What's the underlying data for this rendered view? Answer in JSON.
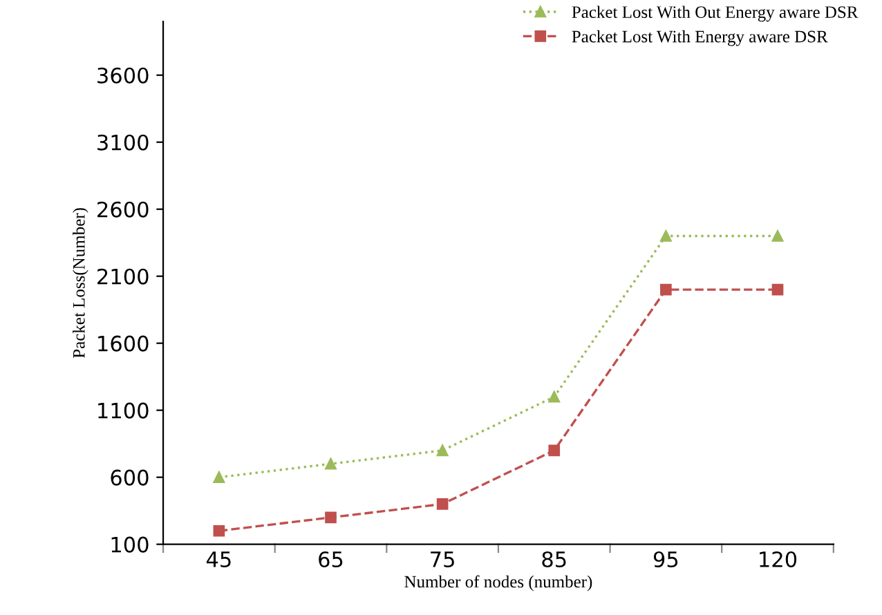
{
  "chart_data": {
    "type": "line",
    "xlabel": "Number of nodes (number)",
    "ylabel": "Packet Loss(Number)",
    "categories": [
      "45",
      "65",
      "75",
      "85",
      "95",
      "120"
    ],
    "series": [
      {
        "name": "Packet Lost With Out Energy aware DSR",
        "color": "#9bbb59",
        "values": [
          600,
          700,
          800,
          1200,
          2400,
          2400
        ],
        "marker": "triangle",
        "line_style": "dotted"
      },
      {
        "name": "Packet Lost With Energy aware DSR",
        "color": "#c0504d",
        "values": [
          200,
          300,
          400,
          800,
          2000,
          2000
        ],
        "marker": "square",
        "line_style": "dashed"
      }
    ],
    "ylim": [
      100,
      4000
    ],
    "yticks": [
      100,
      600,
      1100,
      1600,
      2100,
      2600,
      3100,
      3600
    ],
    "grid": false,
    "legend": "top right"
  }
}
